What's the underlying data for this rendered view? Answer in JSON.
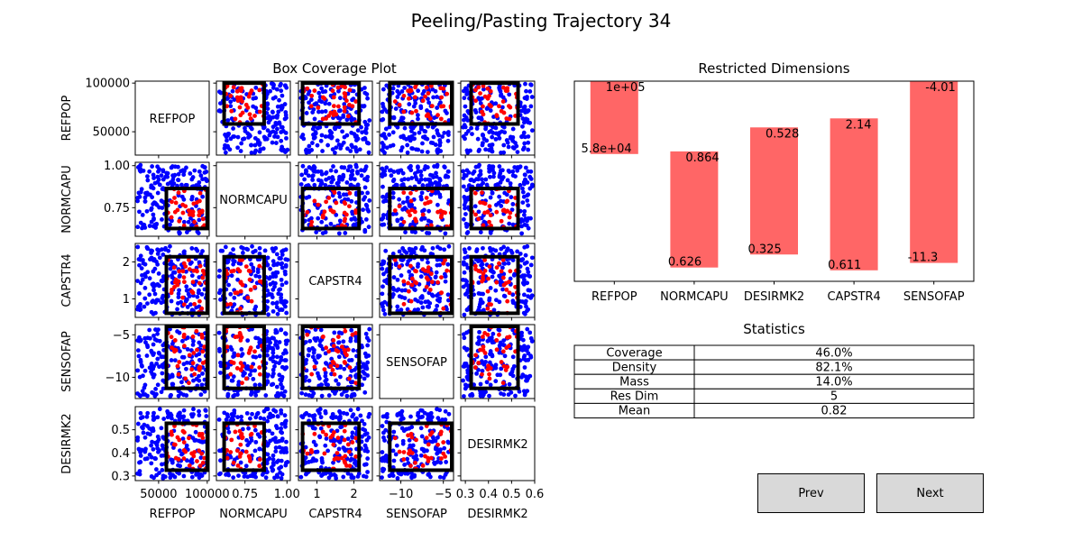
{
  "figure": {
    "title": "Peeling/Pasting Trajectory 34",
    "buttons": {
      "prev": "Prev",
      "next": "Next"
    }
  },
  "colors": {
    "outside_points": "#0000ff",
    "inside_points": "#ff0000",
    "box_outline": "#000000",
    "bars": "#ff6666",
    "button_bg": "#d9d9d9"
  },
  "chart_data": [
    {
      "type": "scatter",
      "title": "Box Coverage Plot",
      "description": "pairwise scatter matrix",
      "dimensions": [
        "REFPOP",
        "NORMCAPU",
        "CAPSTR4",
        "SENSOFAP",
        "DESIRMK2"
      ],
      "ranges": {
        "REFPOP": [
          26000,
          102000
        ],
        "NORMCAPU": [
          0.58,
          1.02
        ],
        "CAPSTR4": [
          0.5,
          2.5
        ],
        "SENSOFAP": [
          -12.5,
          -3.8
        ],
        "DESIRMK2": [
          0.28,
          0.6
        ]
      },
      "box": {
        "REFPOP": [
          58000,
          100000
        ],
        "NORMCAPU": [
          0.626,
          0.864
        ],
        "CAPSTR4": [
          0.611,
          2.14
        ],
        "SENSOFAP": [
          -11.3,
          -4.01
        ],
        "DESIRMK2": [
          0.325,
          0.528
        ]
      },
      "ticks": {
        "REFPOP": {
          "values": [
            50000,
            100000
          ],
          "labels": [
            "50000",
            "100000"
          ]
        },
        "NORMCAPU": {
          "values": [
            0.75,
            1.0
          ],
          "labels": [
            "0.75",
            "1.00"
          ],
          "x_labels": [
            "0.75",
            "1.00"
          ]
        },
        "CAPSTR4": {
          "values": [
            1,
            2
          ],
          "labels": [
            "1",
            "2"
          ]
        },
        "SENSOFAP": {
          "values": [
            -10,
            -5
          ],
          "labels": [
            "−10",
            "−5"
          ],
          "y_values": [
            -10,
            -5
          ],
          "y_labels": [
            "−10",
            "−5"
          ]
        },
        "DESIRMK2": {
          "values": [
            0.3,
            0.4,
            0.5,
            0.6
          ],
          "labels": [
            "0.3",
            "0.4",
            "0.5",
            "0.6"
          ]
        }
      },
      "y_ticks": {
        "REFPOP": {
          "values": [
            50000,
            100000
          ],
          "labels": [
            "50000",
            "100000"
          ]
        },
        "NORMCAPU": {
          "values": [
            0.75,
            1.0
          ],
          "labels": [
            "0.75",
            "1.00"
          ]
        },
        "CAPSTR4": {
          "values": [
            1,
            2
          ],
          "labels": [
            "1",
            "2"
          ]
        },
        "SENSOFAP": {
          "values": [
            -10,
            -5
          ],
          "labels": [
            "−10",
            "−5"
          ]
        },
        "DESIRMK2": {
          "values": [
            0.3,
            0.4,
            0.5
          ],
          "labels": [
            "0.3",
            "0.4",
            "0.5"
          ]
        }
      },
      "x_ticks": {
        "REFPOP": {
          "values": [
            50000,
            100000
          ],
          "labels": [
            "50000",
            "100000"
          ]
        },
        "NORMCAPU": {
          "values": [
            0.75,
            1.0
          ],
          "labels": [
            "0.75",
            "1.00"
          ]
        },
        "CAPSTR4": {
          "values": [
            1,
            2
          ],
          "labels": [
            "1",
            "2"
          ]
        },
        "SENSOFAP": {
          "values": [
            -10,
            -5
          ],
          "labels": [
            "−10",
            "−5"
          ]
        },
        "DESIRMK2": {
          "values": [
            0.3,
            0.4,
            0.5,
            0.6
          ],
          "labels": [
            "0.3",
            "0.4",
            "0.5",
            "0.6"
          ]
        }
      },
      "point_count": 220,
      "legend": "none",
      "grid": false
    },
    {
      "type": "bar",
      "title": "Restricted Dimensions",
      "categories": [
        "REFPOP",
        "NORMCAPU",
        "DESIRMK2",
        "CAPSTR4",
        "SENSOFAP"
      ],
      "lower_labels": [
        "5.8e+04",
        "0.626",
        "0.325",
        "0.611",
        "-11.3"
      ],
      "upper_labels": [
        "1e+05",
        "0.864",
        "0.528",
        "2.14",
        "-4.01"
      ],
      "normalized_ranges": [
        [
          0.636,
          1.0
        ],
        [
          0.069,
          0.649
        ],
        [
          0.134,
          0.769
        ],
        [
          0.055,
          0.814
        ],
        [
          0.092,
          1.0
        ]
      ],
      "grid": false
    },
    {
      "type": "table",
      "title": "Statistics",
      "rows": [
        [
          "Coverage",
          "46.0%"
        ],
        [
          "Density",
          "82.1%"
        ],
        [
          "Mass",
          "14.0%"
        ],
        [
          "Res Dim",
          "5"
        ],
        [
          "Mean",
          "0.82"
        ]
      ]
    }
  ]
}
